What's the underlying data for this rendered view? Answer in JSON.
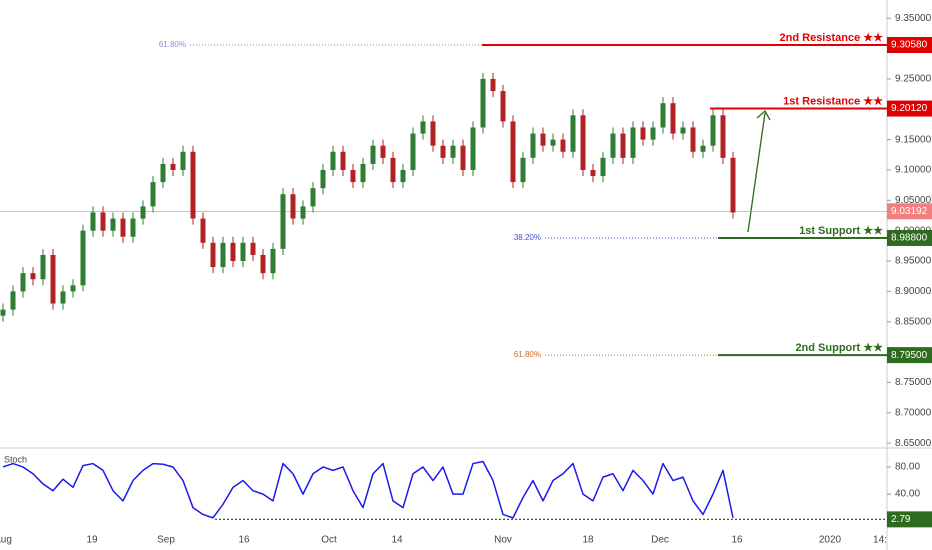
{
  "chart_data": {
    "type": "candlestick",
    "open": [
      8.86,
      8.87,
      8.9,
      8.93,
      8.92,
      8.96,
      8.88,
      8.9,
      8.91,
      9.0,
      9.03,
      9.0,
      9.02,
      8.99,
      9.02,
      9.04,
      9.08,
      9.11,
      9.1,
      9.13,
      9.02,
      8.98,
      8.94,
      8.98,
      8.95,
      8.98,
      8.96,
      8.93,
      8.97,
      9.06,
      9.02,
      9.04,
      9.07,
      9.1,
      9.13,
      9.1,
      9.08,
      9.11,
      9.14,
      9.12,
      9.08,
      9.1,
      9.16,
      9.18,
      9.14,
      9.12,
      9.14,
      9.1,
      9.17,
      9.25,
      9.23,
      9.18,
      9.08,
      9.12,
      9.16,
      9.14,
      9.15,
      9.13,
      9.19,
      9.1,
      9.09,
      9.12,
      9.16,
      9.12,
      9.17,
      9.15,
      9.17,
      9.21,
      9.16,
      9.17,
      9.13,
      9.14,
      9.19,
      9.12
    ],
    "high": [
      8.88,
      8.91,
      8.94,
      8.94,
      8.97,
      8.97,
      8.91,
      8.92,
      9.01,
      9.04,
      9.04,
      9.03,
      9.03,
      9.03,
      9.05,
      9.09,
      9.12,
      9.12,
      9.14,
      9.14,
      9.03,
      8.99,
      8.99,
      8.99,
      8.99,
      8.99,
      8.97,
      8.98,
      9.07,
      9.07,
      9.05,
      9.08,
      9.11,
      9.14,
      9.14,
      9.11,
      9.12,
      9.15,
      9.15,
      9.13,
      9.11,
      9.17,
      9.19,
      9.19,
      9.15,
      9.15,
      9.15,
      9.18,
      9.26,
      9.26,
      9.24,
      9.19,
      9.13,
      9.17,
      9.17,
      9.16,
      9.16,
      9.2,
      9.2,
      9.11,
      9.13,
      9.17,
      9.17,
      9.18,
      9.18,
      9.18,
      9.22,
      9.22,
      9.18,
      9.18,
      9.15,
      9.2,
      9.2,
      9.13
    ],
    "low": [
      8.85,
      8.86,
      8.89,
      8.91,
      8.91,
      8.87,
      8.87,
      8.89,
      8.9,
      8.99,
      8.99,
      8.99,
      8.98,
      8.98,
      9.01,
      9.03,
      9.07,
      9.09,
      9.09,
      9.01,
      8.97,
      8.93,
      8.93,
      8.94,
      8.94,
      8.95,
      8.92,
      8.92,
      8.96,
      9.01,
      9.01,
      9.03,
      9.06,
      9.09,
      9.09,
      9.07,
      9.07,
      9.1,
      9.11,
      9.07,
      9.07,
      9.09,
      9.15,
      9.13,
      9.11,
      9.11,
      9.09,
      9.09,
      9.16,
      9.22,
      9.17,
      9.07,
      9.07,
      9.11,
      9.13,
      9.13,
      9.12,
      9.12,
      9.09,
      9.08,
      9.08,
      9.11,
      9.11,
      9.11,
      9.14,
      9.14,
      9.16,
      9.15,
      9.15,
      9.12,
      9.12,
      9.13,
      9.11,
      9.02
    ],
    "close": [
      8.87,
      8.9,
      8.93,
      8.92,
      8.96,
      8.88,
      8.9,
      8.91,
      9.0,
      9.03,
      9.0,
      9.02,
      8.99,
      9.02,
      9.04,
      9.08,
      9.11,
      9.1,
      9.13,
      9.02,
      8.98,
      8.94,
      8.98,
      8.95,
      8.98,
      8.96,
      8.93,
      8.97,
      9.06,
      9.02,
      9.04,
      9.07,
      9.1,
      9.13,
      9.1,
      9.08,
      9.11,
      9.14,
      9.12,
      9.08,
      9.1,
      9.16,
      9.18,
      9.14,
      9.12,
      9.14,
      9.1,
      9.17,
      9.25,
      9.23,
      9.18,
      9.08,
      9.12,
      9.16,
      9.14,
      9.15,
      9.13,
      9.19,
      9.1,
      9.09,
      9.12,
      9.16,
      9.12,
      9.17,
      9.15,
      9.17,
      9.21,
      9.16,
      9.17,
      9.13,
      9.14,
      9.19,
      9.12,
      9.03
    ],
    "color_up": "#2e7d32",
    "color_down": "#b22222",
    "ylim": [
      8.642,
      9.38
    ],
    "yticks": [
      {
        "value": 9.35,
        "label": "9.35000"
      },
      {
        "value": 9.3,
        "label": "9.30000"
      },
      {
        "value": 9.25,
        "label": "9.25000"
      },
      {
        "value": 9.2,
        "label": "9.20000"
      },
      {
        "value": 9.15,
        "label": "9.15000"
      },
      {
        "value": 9.1,
        "label": "9.10000"
      },
      {
        "value": 9.05,
        "label": "9.05000"
      },
      {
        "value": 9.0,
        "label": "9.00000"
      },
      {
        "value": 8.95,
        "label": "8.95000"
      },
      {
        "value": 8.9,
        "label": "8.90000"
      },
      {
        "value": 8.85,
        "label": "8.85000"
      },
      {
        "value": 8.8,
        "label": "8.80000"
      },
      {
        "value": 8.75,
        "label": "8.75000"
      },
      {
        "value": 8.7,
        "label": "8.70000"
      },
      {
        "value": 8.65,
        "label": "8.65000"
      }
    ],
    "x_labels": [
      "Aug",
      "19",
      "Sep",
      "16",
      "Oct",
      "14",
      "Nov",
      "18",
      "Dec",
      "16",
      "2020",
      "14:"
    ],
    "levels": [
      {
        "name": "2nd Resistance ★★",
        "value": 9.3058,
        "label": "9.30580",
        "color": "#e00000"
      },
      {
        "name": "1st Resistance ★★",
        "value": 9.2012,
        "label": "9.20120",
        "color": "#e00000"
      },
      {
        "name": "1st Support ★★",
        "value": 8.988,
        "label": "8.98800",
        "color": "#2e6b1f"
      },
      {
        "name": "2nd Support ★★",
        "value": 8.795,
        "label": "8.79500",
        "color": "#2e6b1f"
      }
    ],
    "fib": [
      {
        "label": "61.80%",
        "value": 9.3058,
        "color": "#8c8ccf"
      },
      {
        "label": "38.20%",
        "value": 8.988,
        "color": "#4a4acf"
      },
      {
        "label": "61.80%",
        "value": 8.795,
        "color": "#d2691e"
      }
    ],
    "last_price": {
      "value": 9.03192,
      "label": "9.03192",
      "color": "#f08080"
    },
    "oscillator": {
      "name": "Stoch",
      "color": "#1a1aee",
      "values": [
        80,
        85,
        80,
        70,
        55,
        45,
        62,
        50,
        82,
        85,
        75,
        45,
        30,
        60,
        75,
        85,
        84,
        80,
        60,
        20,
        10,
        5,
        25,
        50,
        60,
        45,
        40,
        30,
        85,
        70,
        40,
        70,
        80,
        75,
        80,
        45,
        20,
        70,
        85,
        30,
        20,
        70,
        80,
        60,
        80,
        40,
        40,
        85,
        88,
        60,
        10,
        5,
        35,
        60,
        30,
        60,
        70,
        85,
        40,
        30,
        65,
        70,
        45,
        75,
        60,
        40,
        85,
        60,
        65,
        30,
        10,
        40,
        75,
        5
      ],
      "ylim": [
        -35,
        105
      ],
      "yticks": [
        {
          "value": 80,
          "label": "80.00"
        },
        {
          "value": 40,
          "label": "40.00"
        }
      ],
      "level": {
        "value": 2.79,
        "label": "2.79",
        "color": "#2e6b1f"
      }
    }
  }
}
